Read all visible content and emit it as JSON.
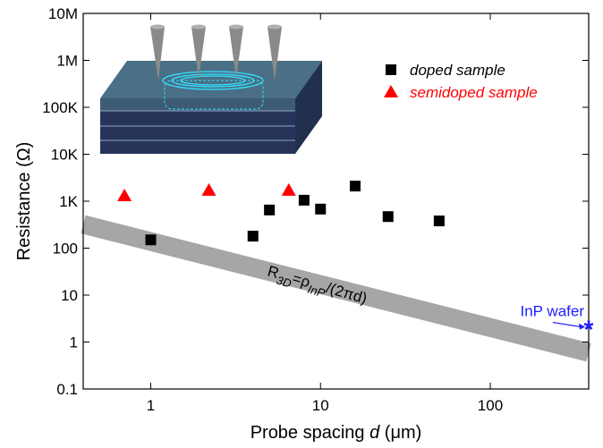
{
  "chart_data": {
    "type": "scatter",
    "x_label": [
      "Probe spacing ",
      "d",
      " (μm)"
    ],
    "y_label": "Resistance (Ω)",
    "log_x": true,
    "log_y": true,
    "xlim": [
      0.4,
      380
    ],
    "ylim": [
      0.1,
      10000000
    ],
    "xticks": [
      1,
      10,
      100
    ],
    "yticks": [
      0.1,
      1,
      10,
      100,
      {
        "value": 1000,
        "label": "1K"
      },
      {
        "value": 10000,
        "label": "10K"
      },
      {
        "value": 100000,
        "label": "100K"
      },
      {
        "value": 1000000,
        "label": "1M"
      },
      {
        "value": 10000000,
        "label": "10M"
      }
    ],
    "series": [
      {
        "name": "doped sample",
        "color": "#000000",
        "marker": "square",
        "x": [
          1,
          4,
          5,
          8,
          10,
          16,
          25,
          50
        ],
        "values": [
          150,
          180,
          650,
          1050,
          680,
          2100,
          470,
          380
        ]
      },
      {
        "name": "semidoped sample",
        "color": "#ff0000",
        "marker": "triangle",
        "x": [
          0.7,
          2.2,
          6.5
        ],
        "values": [
          1300,
          1700,
          1700
        ]
      }
    ],
    "band": {
      "color": "#a6a6a6",
      "x": [
        0.4,
        380
      ],
      "values": [
        320,
        0.6
      ]
    },
    "band_label": [
      "R",
      "3D",
      "=ρ",
      "InP",
      "/(2πd)"
    ],
    "wafer": {
      "label": "InP wafer",
      "color": "#1f1fff",
      "x": [
        380
      ],
      "values": [
        2.1
      ]
    }
  }
}
